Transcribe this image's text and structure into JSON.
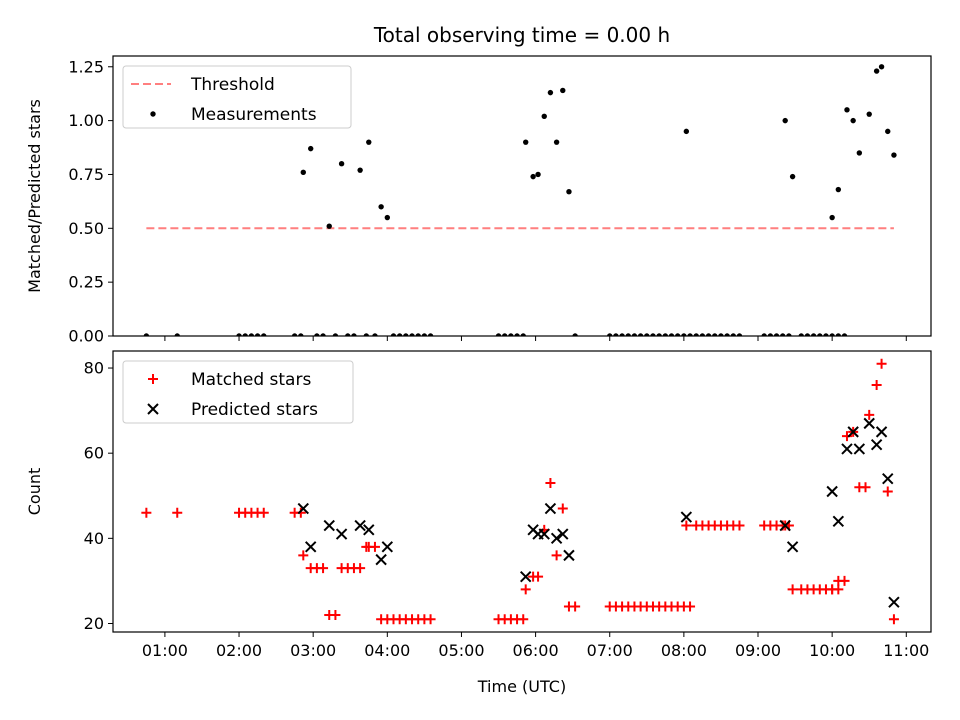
{
  "chart_data": [
    {
      "type": "scatter",
      "title": "Total observing time = 0.00 h",
      "xlabel": "",
      "ylabel": "Matched/Predicted stars",
      "xlim": [
        "00:18",
        "11:20"
      ],
      "ylim": [
        0,
        1.3
      ],
      "yticks": [
        "0.00",
        "0.25",
        "0.50",
        "0.75",
        "1.00",
        "1.25"
      ],
      "legend": "top-left",
      "series": [
        {
          "name": "Threshold",
          "style": "dashed-line",
          "color": "#ff7f7f",
          "x": [
            "00:45",
            "10:50"
          ],
          "y": [
            0.5,
            0.5
          ]
        },
        {
          "name": "Measurements",
          "style": "dot",
          "color": "#000000",
          "points": [
            [
              "00:45",
              0
            ],
            [
              "01:10",
              0
            ],
            [
              "02:00",
              0
            ],
            [
              "02:05",
              0
            ],
            [
              "02:10",
              0
            ],
            [
              "02:15",
              0
            ],
            [
              "02:20",
              0
            ],
            [
              "02:45",
              0
            ],
            [
              "02:50",
              0
            ],
            [
              "02:52",
              0.76
            ],
            [
              "02:58",
              0.87
            ],
            [
              "03:03",
              0
            ],
            [
              "03:08",
              0
            ],
            [
              "03:13",
              0.51
            ],
            [
              "03:18",
              0
            ],
            [
              "03:23",
              0.8
            ],
            [
              "03:28",
              0
            ],
            [
              "03:33",
              0
            ],
            [
              "03:38",
              0.77
            ],
            [
              "03:43",
              0
            ],
            [
              "03:45",
              0.9
            ],
            [
              "03:50",
              0
            ],
            [
              "03:55",
              0.6
            ],
            [
              "04:00",
              0.55
            ],
            [
              "04:05",
              0
            ],
            [
              "04:10",
              0
            ],
            [
              "04:15",
              0
            ],
            [
              "04:20",
              0
            ],
            [
              "04:25",
              0
            ],
            [
              "04:30",
              0
            ],
            [
              "04:35",
              0
            ],
            [
              "05:30",
              0
            ],
            [
              "05:35",
              0
            ],
            [
              "05:40",
              0
            ],
            [
              "05:45",
              0
            ],
            [
              "05:50",
              0
            ],
            [
              "05:52",
              0.9
            ],
            [
              "05:58",
              0.74
            ],
            [
              "06:02",
              0.75
            ],
            [
              "06:07",
              1.02
            ],
            [
              "06:12",
              1.13
            ],
            [
              "06:17",
              0.9
            ],
            [
              "06:22",
              1.14
            ],
            [
              "06:27",
              0.67
            ],
            [
              "06:32",
              0
            ],
            [
              "07:00",
              0
            ],
            [
              "07:05",
              0
            ],
            [
              "07:10",
              0
            ],
            [
              "07:15",
              0
            ],
            [
              "07:20",
              0
            ],
            [
              "07:25",
              0
            ],
            [
              "07:30",
              0
            ],
            [
              "07:35",
              0
            ],
            [
              "07:40",
              0
            ],
            [
              "07:45",
              0
            ],
            [
              "07:50",
              0
            ],
            [
              "07:55",
              0
            ],
            [
              "08:00",
              0
            ],
            [
              "08:05",
              0
            ],
            [
              "08:02",
              0.95
            ],
            [
              "08:10",
              0
            ],
            [
              "08:15",
              0
            ],
            [
              "08:20",
              0
            ],
            [
              "08:25",
              0
            ],
            [
              "08:30",
              0
            ],
            [
              "08:35",
              0
            ],
            [
              "08:40",
              0
            ],
            [
              "08:45",
              0
            ],
            [
              "09:05",
              0
            ],
            [
              "09:10",
              0
            ],
            [
              "09:15",
              0
            ],
            [
              "09:20",
              0
            ],
            [
              "09:25",
              0
            ],
            [
              "09:22",
              1.0
            ],
            [
              "09:28",
              0.74
            ],
            [
              "09:35",
              0
            ],
            [
              "09:40",
              0
            ],
            [
              "09:45",
              0
            ],
            [
              "09:50",
              0
            ],
            [
              "09:55",
              0
            ],
            [
              "10:00",
              0
            ],
            [
              "10:05",
              0
            ],
            [
              "10:00",
              0.55
            ],
            [
              "10:05",
              0.68
            ],
            [
              "10:10",
              0
            ],
            [
              "10:12",
              1.05
            ],
            [
              "10:17",
              1.0
            ],
            [
              "10:22",
              0.85
            ],
            [
              "10:30",
              1.03
            ],
            [
              "10:36",
              1.23
            ],
            [
              "10:40",
              1.25
            ],
            [
              "10:45",
              0.95
            ],
            [
              "10:50",
              0.84
            ]
          ]
        }
      ]
    },
    {
      "type": "scatter",
      "title": "",
      "xlabel": "Time (UTC)",
      "ylabel": "Count",
      "xlim": [
        "00:18",
        "11:20"
      ],
      "ylim": [
        18,
        84
      ],
      "xticks": [
        "01:00",
        "02:00",
        "03:00",
        "04:00",
        "05:00",
        "06:00",
        "07:00",
        "08:00",
        "09:00",
        "10:00",
        "11:00"
      ],
      "yticks": [
        "20",
        "40",
        "60",
        "80"
      ],
      "legend": "top-left",
      "series": [
        {
          "name": "Matched stars",
          "style": "plus",
          "color": "#ff0000",
          "points": [
            [
              "00:45",
              46
            ],
            [
              "01:10",
              46
            ],
            [
              "02:00",
              46
            ],
            [
              "02:05",
              46
            ],
            [
              "02:10",
              46
            ],
            [
              "02:15",
              46
            ],
            [
              "02:20",
              46
            ],
            [
              "02:45",
              46
            ],
            [
              "02:50",
              46
            ],
            [
              "02:52",
              36
            ],
            [
              "02:58",
              33
            ],
            [
              "03:03",
              33
            ],
            [
              "03:08",
              33
            ],
            [
              "03:13",
              22
            ],
            [
              "03:18",
              22
            ],
            [
              "03:23",
              33
            ],
            [
              "03:28",
              33
            ],
            [
              "03:33",
              33
            ],
            [
              "03:38",
              33
            ],
            [
              "03:43",
              38
            ],
            [
              "03:45",
              38
            ],
            [
              "03:50",
              38
            ],
            [
              "03:55",
              21
            ],
            [
              "04:00",
              21
            ],
            [
              "04:05",
              21
            ],
            [
              "04:10",
              21
            ],
            [
              "04:15",
              21
            ],
            [
              "04:20",
              21
            ],
            [
              "04:25",
              21
            ],
            [
              "04:30",
              21
            ],
            [
              "04:35",
              21
            ],
            [
              "05:30",
              21
            ],
            [
              "05:35",
              21
            ],
            [
              "05:40",
              21
            ],
            [
              "05:45",
              21
            ],
            [
              "05:50",
              21
            ],
            [
              "05:52",
              28
            ],
            [
              "05:58",
              31
            ],
            [
              "06:02",
              31
            ],
            [
              "06:07",
              42
            ],
            [
              "06:12",
              53
            ],
            [
              "06:17",
              36
            ],
            [
              "06:22",
              47
            ],
            [
              "06:27",
              24
            ],
            [
              "06:32",
              24
            ],
            [
              "07:00",
              24
            ],
            [
              "07:05",
              24
            ],
            [
              "07:10",
              24
            ],
            [
              "07:15",
              24
            ],
            [
              "07:20",
              24
            ],
            [
              "07:25",
              24
            ],
            [
              "07:30",
              24
            ],
            [
              "07:35",
              24
            ],
            [
              "07:40",
              24
            ],
            [
              "07:45",
              24
            ],
            [
              "07:50",
              24
            ],
            [
              "07:55",
              24
            ],
            [
              "08:00",
              24
            ],
            [
              "08:05",
              24
            ],
            [
              "08:02",
              43
            ],
            [
              "08:10",
              43
            ],
            [
              "08:15",
              43
            ],
            [
              "08:20",
              43
            ],
            [
              "08:25",
              43
            ],
            [
              "08:30",
              43
            ],
            [
              "08:35",
              43
            ],
            [
              "08:40",
              43
            ],
            [
              "08:45",
              43
            ],
            [
              "09:05",
              43
            ],
            [
              "09:10",
              43
            ],
            [
              "09:15",
              43
            ],
            [
              "09:20",
              43
            ],
            [
              "09:25",
              43
            ],
            [
              "09:22",
              43
            ],
            [
              "09:28",
              28
            ],
            [
              "09:35",
              28
            ],
            [
              "09:40",
              28
            ],
            [
              "09:45",
              28
            ],
            [
              "09:50",
              28
            ],
            [
              "09:55",
              28
            ],
            [
              "10:00",
              28
            ],
            [
              "10:05",
              28
            ],
            [
              "10:00",
              28
            ],
            [
              "10:05",
              30
            ],
            [
              "10:10",
              30
            ],
            [
              "10:12",
              64
            ],
            [
              "10:17",
              65
            ],
            [
              "10:22",
              52
            ],
            [
              "10:30",
              69
            ],
            [
              "10:36",
              76
            ],
            [
              "10:40",
              81
            ],
            [
              "10:45",
              51
            ],
            [
              "10:50",
              21
            ],
            [
              "10:27",
              52
            ]
          ]
        },
        {
          "name": "Predicted stars",
          "style": "cross",
          "color": "#000000",
          "points": [
            [
              "02:52",
              47
            ],
            [
              "02:58",
              38
            ],
            [
              "03:13",
              43
            ],
            [
              "03:23",
              41
            ],
            [
              "03:38",
              43
            ],
            [
              "03:45",
              42
            ],
            [
              "03:55",
              35
            ],
            [
              "04:00",
              38
            ],
            [
              "05:52",
              31
            ],
            [
              "05:58",
              42
            ],
            [
              "06:02",
              41
            ],
            [
              "06:07",
              41
            ],
            [
              "06:12",
              47
            ],
            [
              "06:17",
              40
            ],
            [
              "06:22",
              41
            ],
            [
              "06:27",
              36
            ],
            [
              "08:02",
              45
            ],
            [
              "09:22",
              43
            ],
            [
              "09:28",
              38
            ],
            [
              "10:00",
              51
            ],
            [
              "10:05",
              44
            ],
            [
              "10:12",
              61
            ],
            [
              "10:17",
              65
            ],
            [
              "10:22",
              61
            ],
            [
              "10:30",
              67
            ],
            [
              "10:36",
              62
            ],
            [
              "10:40",
              65
            ],
            [
              "10:45",
              54
            ],
            [
              "10:50",
              25
            ]
          ]
        }
      ]
    }
  ]
}
